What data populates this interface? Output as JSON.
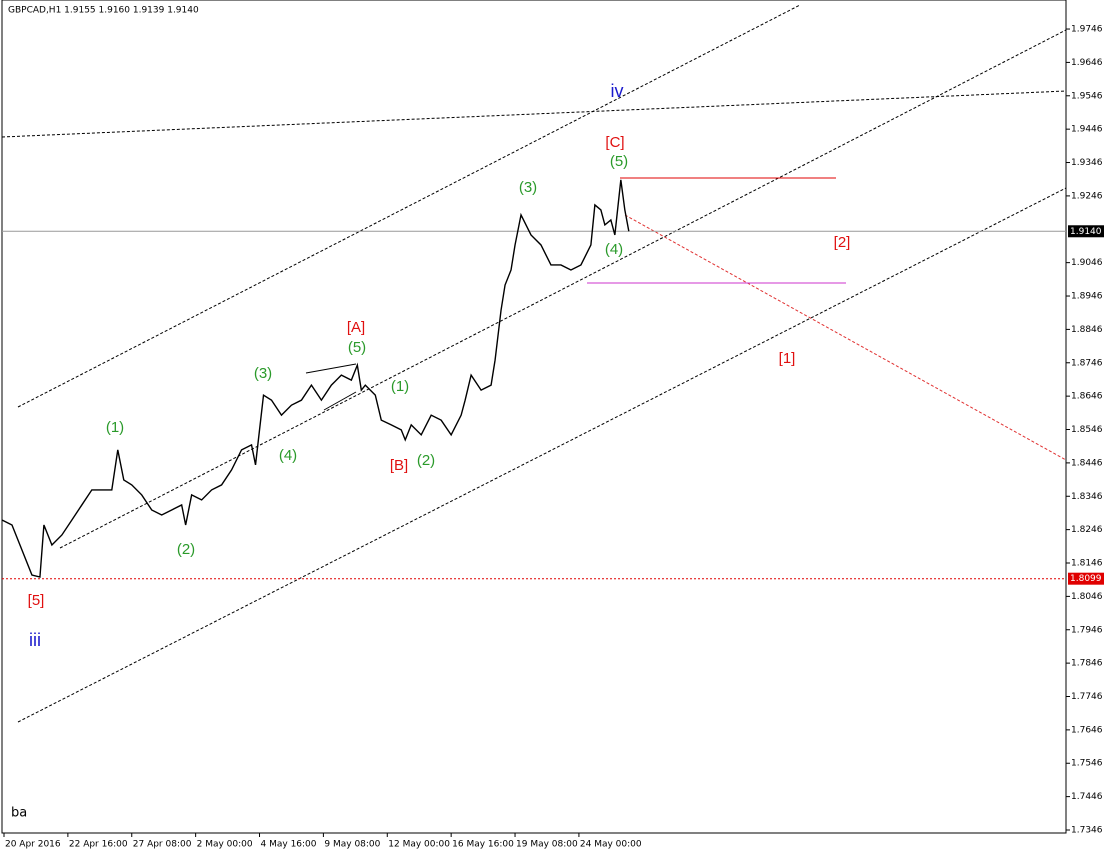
{
  "chart_data": {
    "type": "line",
    "title": "GBPCAD,H1  1.9155 1.9160 1.9139 1.9140",
    "corner_text": "ba",
    "x": [
      0,
      5,
      9,
      15,
      19,
      21,
      25,
      30,
      35,
      40,
      45,
      50,
      55,
      58,
      61,
      65,
      70,
      75,
      80,
      85,
      90,
      92,
      95,
      100,
      105,
      110,
      115,
      120,
      125,
      127,
      131,
      135,
      140,
      145,
      150,
      155,
      160,
      165,
      170,
      175,
      178,
      180,
      182,
      187,
      190,
      195,
      200,
      202,
      205,
      210,
      215,
      220,
      225,
      230,
      232,
      235,
      240,
      245,
      247,
      250,
      252,
      255,
      257,
      260,
      265,
      270,
      275,
      280,
      285,
      290,
      295,
      297,
      300,
      302,
      305,
      307,
      310,
      312,
      314
    ],
    "series": [
      {
        "name": "GBPCAD",
        "color": "#000000",
        "values": [
          1.8275,
          1.826,
          1.82,
          1.811,
          1.8104,
          1.826,
          1.82,
          1.823,
          1.8275,
          1.832,
          1.8365,
          1.8365,
          1.8365,
          1.8485,
          1.8395,
          1.838,
          1.835,
          1.8305,
          1.829,
          1.8305,
          1.832,
          1.826,
          1.835,
          1.8335,
          1.8365,
          1.838,
          1.8425,
          1.8485,
          1.85,
          1.844,
          1.8649,
          1.8634,
          1.8589,
          1.8619,
          1.8634,
          1.8679,
          1.8634,
          1.8679,
          1.8709,
          1.8694,
          1.8739,
          1.8664,
          1.8679,
          1.8649,
          1.8574,
          1.856,
          1.8545,
          1.8515,
          1.856,
          1.853,
          1.8589,
          1.8574,
          1.853,
          1.8589,
          1.8634,
          1.8709,
          1.8664,
          1.8679,
          1.8754,
          1.8904,
          1.8979,
          1.9024,
          1.9099,
          1.9189,
          1.9129,
          1.9099,
          1.9039,
          1.9039,
          1.9024,
          1.9039,
          1.9099,
          1.9219,
          1.9204,
          1.9159,
          1.9174,
          1.9129,
          1.9294,
          1.9204,
          1.914
        ]
      }
    ],
    "xlim": [
      0,
      533
    ],
    "xticks": [
      {
        "value": 1,
        "label": "20 Apr 2016"
      },
      {
        "value": 33,
        "label": "22 Apr 16:00"
      },
      {
        "value": 65,
        "label": "27 Apr 08:00"
      },
      {
        "value": 97,
        "label": "2 May 00:00"
      },
      {
        "value": 129,
        "label": "4 May 16:00"
      },
      {
        "value": 161,
        "label": "9 May 08:00"
      },
      {
        "value": 193,
        "label": "12 May 00:00"
      },
      {
        "value": 225,
        "label": "16 May 16:00"
      },
      {
        "value": 257,
        "label": "19 May 08:00"
      },
      {
        "value": 289,
        "label": "24 May 00:00"
      }
    ],
    "ylim": [
      1.7337,
      1.9833
    ],
    "yticks": [
      1.9746,
      1.9646,
      1.9546,
      1.9446,
      1.9346,
      1.9246,
      1.9046,
      1.8946,
      1.8846,
      1.8746,
      1.8646,
      1.8546,
      1.8446,
      1.8346,
      1.8246,
      1.8146,
      1.8046,
      1.7946,
      1.7846,
      1.7746,
      1.7646,
      1.7546,
      1.7446,
      1.7346
    ],
    "price_lines": [
      {
        "value": 1.914,
        "label": "1.9140",
        "color": "#999999"
      },
      {
        "value": 1.8099,
        "label": "1.8099",
        "color": "#e00000"
      }
    ],
    "annotations": [
      {
        "text": "iv",
        "color": "#1a1acc"
      },
      {
        "text": "[C]",
        "color": "#e01010"
      },
      {
        "text": "(5)",
        "color": "#2a9a2a"
      },
      {
        "text": "(3)",
        "color": "#2a9a2a"
      },
      {
        "text": "(4)",
        "color": "#2a9a2a"
      },
      {
        "text": "[2]",
        "color": "#e01010"
      },
      {
        "text": "[A]",
        "color": "#e01010"
      },
      {
        "text": "(5)",
        "color": "#2a9a2a"
      },
      {
        "text": "(3)",
        "color": "#2a9a2a"
      },
      {
        "text": "(1)",
        "color": "#2a9a2a"
      },
      {
        "text": "(1)",
        "color": "#2a9a2a"
      },
      {
        "text": "(4)",
        "color": "#2a9a2a"
      },
      {
        "text": "[B]",
        "color": "#e01010"
      },
      {
        "text": "(2)",
        "color": "#2a9a2a"
      },
      {
        "text": "[1]",
        "color": "#e01010"
      },
      {
        "text": "(2)",
        "color": "#2a9a2a"
      },
      {
        "text": "[5]",
        "color": "#e01010"
      },
      {
        "text": "iii",
        "color": "#1a1acc"
      }
    ]
  }
}
